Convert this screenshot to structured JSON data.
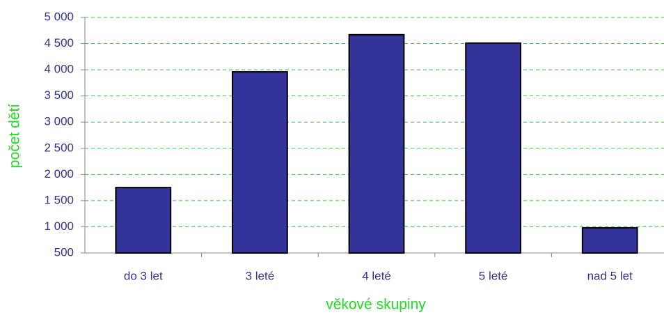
{
  "chart_data": {
    "type": "bar",
    "x_label": "věkové skupiny",
    "y_label": "počet dětí",
    "categories": [
      "do 3 let",
      "3 leté",
      "4 leté",
      "5 leté",
      "nad 5 let"
    ],
    "values": [
      1750,
      3960,
      4670,
      4510,
      980
    ],
    "color": "#333399",
    "ylim": [
      500,
      5000
    ],
    "yticks": [
      500,
      {
        "value": 1000,
        "label": "1 000"
      },
      {
        "value": 1500,
        "label": "1 500"
      },
      {
        "value": 2000,
        "label": "2 000"
      },
      {
        "value": 2500,
        "label": "2 500"
      },
      {
        "value": 3000,
        "label": "3 000"
      },
      {
        "value": 3500,
        "label": "3 500"
      },
      {
        "value": 4000,
        "label": "4 000"
      },
      {
        "value": 4500,
        "label": "4 500"
      },
      {
        "value": 5000,
        "label": "5 000"
      }
    ],
    "grid": true
  }
}
